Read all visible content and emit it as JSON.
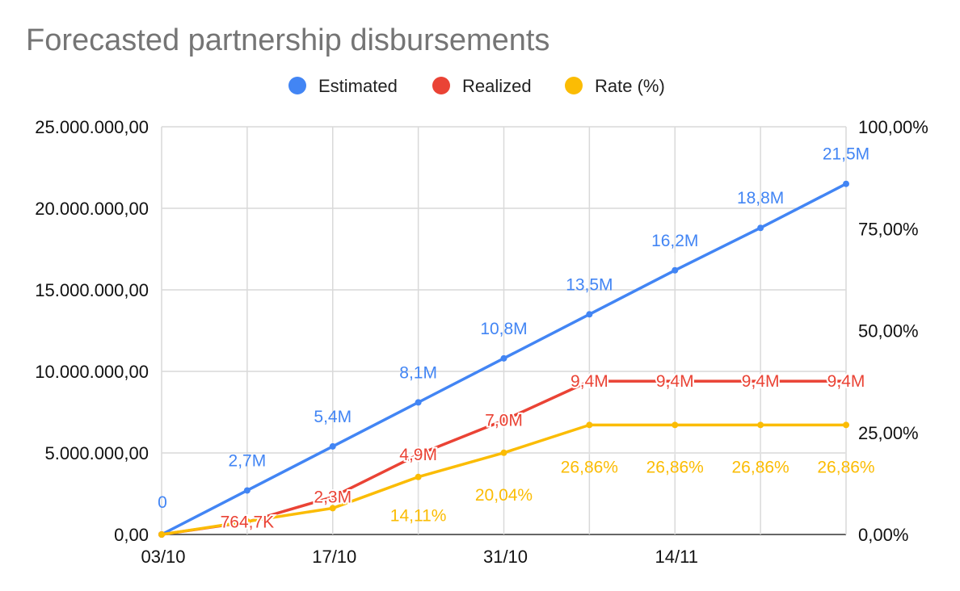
{
  "chart_data": {
    "type": "line",
    "title": "Forecasted partnership disbursements",
    "x": [
      "2021-10-03",
      "2021-10-10",
      "2021-10-17",
      "2021-10-24",
      "2021-10-31",
      "2021-11-07",
      "2021-11-14",
      "2021-11-21",
      "2021-11-28"
    ],
    "x_tick_labels": [
      "03/10",
      "17/10",
      "31/10",
      "14/11"
    ],
    "x_tick_values": [
      "2021-10-03",
      "2021-10-17",
      "2021-10-31",
      "2021-11-14"
    ],
    "ylim_left": [
      0,
      25000000
    ],
    "y_left_ticks": [
      0,
      5000000,
      10000000,
      15000000,
      20000000,
      25000000
    ],
    "y_left_tick_labels": [
      "0,00",
      "5.000.000,00",
      "10.000.000,00",
      "15.000.000,00",
      "20.000.000,00",
      "25.000.000,00"
    ],
    "ylim_right": [
      0,
      100
    ],
    "y_right_ticks": [
      0,
      25,
      50,
      75,
      100
    ],
    "y_right_tick_labels": [
      "0,00%",
      "25,00%",
      "50,00%",
      "75,00%",
      "100,00%"
    ],
    "grid": true,
    "legend_position": "top",
    "series": [
      {
        "name": "Estimated",
        "axis": "left",
        "color": "#4285f4",
        "values": [
          0,
          2700000,
          5400000,
          8100000,
          10800000,
          13500000,
          16200000,
          18800000,
          21500000
        ],
        "labels": [
          "0",
          "2,7M",
          "5,4M",
          "8,1M",
          "10,8M",
          "13,5M",
          "16,2M",
          "18,8M",
          "21,5M"
        ]
      },
      {
        "name": "Realized",
        "axis": "left",
        "color": "#ea4335",
        "values": [
          0,
          764700,
          2300000,
          4900000,
          7000000,
          9400000,
          9400000,
          9400000,
          9400000
        ],
        "labels": [
          "",
          "764,7K",
          "2,3M",
          "4,9M",
          "7,0M",
          "9,4M",
          "9,4M",
          "9,4M",
          "9,4M"
        ]
      },
      {
        "name": "Rate (%)",
        "axis": "right",
        "color": "#fbbc04",
        "values": [
          0,
          3.2,
          6.45,
          14.11,
          20.04,
          26.86,
          26.86,
          26.86,
          26.86
        ],
        "labels": [
          "",
          "",
          "",
          "14,11%",
          "20,04%",
          "26,86%",
          "26,86%",
          "26,86%",
          "26,86%"
        ]
      }
    ]
  }
}
